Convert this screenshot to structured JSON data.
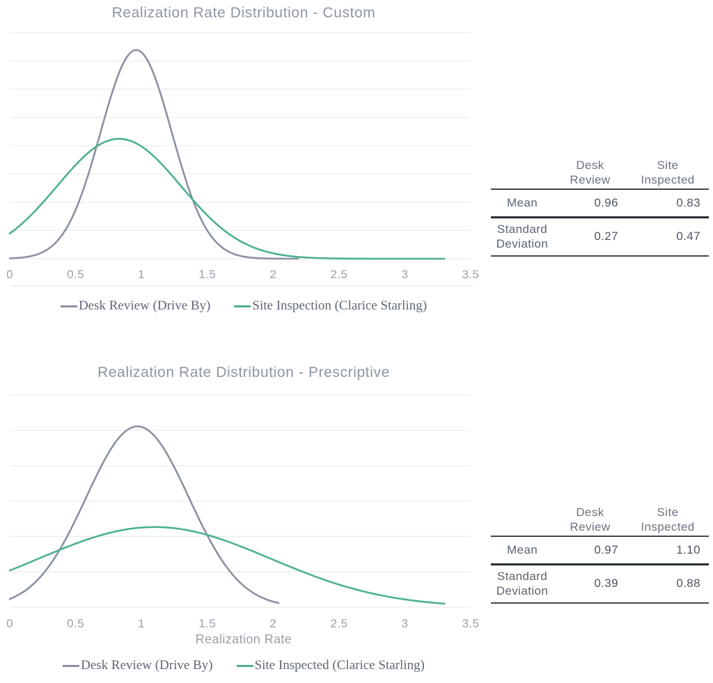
{
  "chart_data": [
    {
      "type": "line",
      "title": "Realization Rate Distribution - Custom",
      "xlabel": "",
      "ylabel": "",
      "xlim": [
        0,
        3.5
      ],
      "ylim": [
        0,
        1.6
      ],
      "x_ticks": [
        "0",
        "0.5",
        "1",
        "1.5",
        "2",
        "2.5",
        "3",
        "3.5"
      ],
      "y_gridline_step": 0.2,
      "grid": "horizontal",
      "legend_position": "bottom",
      "series": [
        {
          "name": "Desk Review (Drive By)",
          "curve": "normal_pdf",
          "mean": 0.96,
          "std": 0.27,
          "x_range": [
            0,
            2.2
          ],
          "color": "#8B91A1"
        },
        {
          "name": "Site Inspection (Clarice Starling)",
          "curve": "normal_pdf",
          "mean": 0.83,
          "std": 0.47,
          "x_range": [
            0,
            3.3
          ],
          "color": "#4DB08D"
        }
      ]
    },
    {
      "type": "line",
      "title": "Realization Rate Distribution - Prescriptive",
      "xlabel": "Realization Rate",
      "ylabel": "",
      "xlim": [
        0,
        3.5
      ],
      "ylim": [
        0,
        1.2
      ],
      "x_ticks": [
        "0",
        "0.5",
        "1",
        "1.5",
        "2",
        "2.5",
        "3",
        "3.5"
      ],
      "y_gridline_step": 0.2,
      "grid": "horizontal",
      "legend_position": "bottom",
      "series": [
        {
          "name": "Desk Review (Drive By)",
          "curve": "normal_pdf",
          "mean": 0.97,
          "std": 0.39,
          "x_range": [
            0,
            2.05
          ],
          "color": "#8B91A1"
        },
        {
          "name": "Site Inspected (Clarice Starling)",
          "curve": "normal_pdf",
          "mean": 1.1,
          "std": 0.88,
          "x_range": [
            0,
            3.3
          ],
          "color": "#4DB08D"
        }
      ]
    }
  ],
  "tables": [
    {
      "columns": [
        "",
        "Desk\nReview",
        "Site\nInspected"
      ],
      "rows": [
        {
          "label": "Mean",
          "values": [
            "0.96",
            "0.83"
          ]
        },
        {
          "label": "Standard\nDeviation",
          "values": [
            "0.27",
            "0.47"
          ]
        }
      ]
    },
    {
      "columns": [
        "",
        "Desk\nReview",
        "Site\nInspected"
      ],
      "rows": [
        {
          "label": "Mean",
          "values": [
            "0.97",
            "1.10"
          ]
        },
        {
          "label": "Standard\nDeviation",
          "values": [
            "0.39",
            "0.88"
          ]
        }
      ]
    }
  ],
  "colors": {
    "desk_review_line": "#8B91A1",
    "site_inspection_line": "#4DB08D",
    "title_text": "#8C96A4",
    "tick_text": "#98A0AC",
    "legend_text": "#5E6878",
    "gridline": "#EEECEE",
    "chart_bottom_rule": "#E9E7E9"
  }
}
